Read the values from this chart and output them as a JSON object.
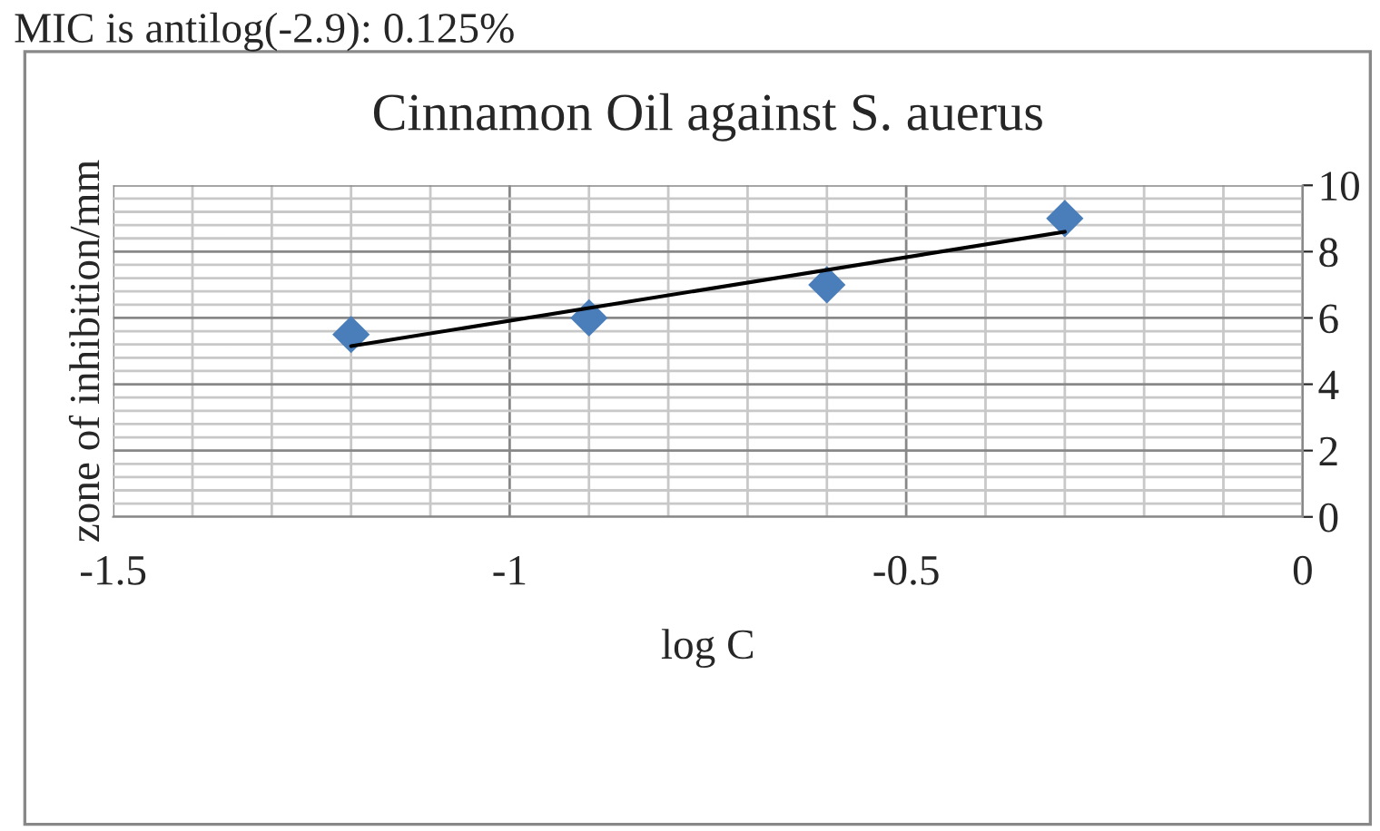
{
  "chart_data": {
    "type": "scatter",
    "title": "Cinnamon Oil against S. auerus",
    "xlabel": "log C",
    "ylabel": "zone of inhibition/mm",
    "annotations": [
      "MIC is antilog(-2.9): 0.125%"
    ],
    "series": [
      {
        "color": "#4a7ebb",
        "marker": "diamond",
        "x": [
          -1.2,
          -0.9,
          -0.6,
          -0.3
        ],
        "values": [
          5.5,
          6,
          7,
          9
        ]
      },
      {
        "type": "line",
        "color": "#000000",
        "marker": "none",
        "line_style": "solid",
        "x": [
          -1.2,
          -0.3
        ],
        "values": [
          5.15,
          8.6
        ]
      }
    ],
    "xlim": [
      -1.5,
      0
    ],
    "xticks": [
      -1.5,
      -1,
      -0.5,
      0
    ],
    "ylim": [
      0,
      10
    ],
    "yticks": [
      0,
      2,
      4,
      6,
      8,
      10
    ],
    "grid": true,
    "legend": false
  }
}
